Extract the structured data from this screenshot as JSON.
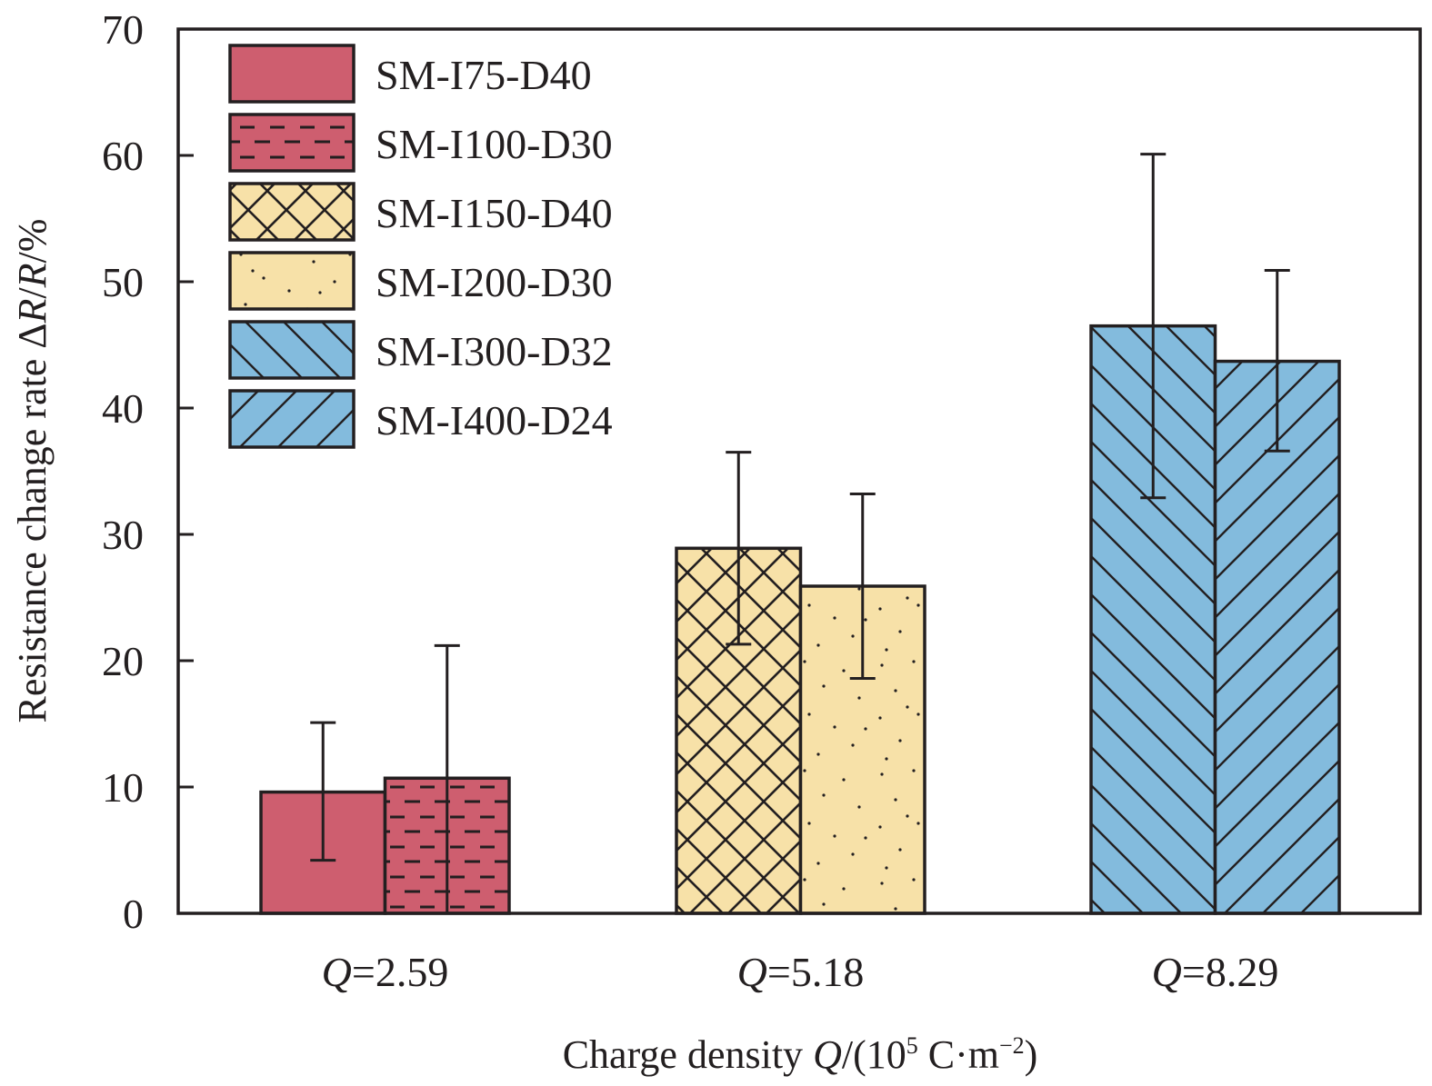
{
  "chart_data": {
    "type": "bar",
    "title": "",
    "xlabel": {
      "prefix": "Charge density ",
      "var": "Q",
      "mid": "/(10",
      "sup1": "5",
      "unit": " C·m",
      "sup2": "−2",
      "end": ")"
    },
    "ylabel": {
      "prefix": "Resistance change rate Δ",
      "var1": "R",
      "sep": "/",
      "var2": "R",
      "suffix": "/%"
    },
    "ylim": [
      0,
      70
    ],
    "yticks": [
      0,
      10,
      20,
      30,
      40,
      50,
      60,
      70
    ],
    "grid": false,
    "legend_position": "top-left",
    "categories": [
      {
        "var": "Q",
        "text": "=2.59"
      },
      {
        "var": "Q",
        "text": "=5.18"
      },
      {
        "var": "Q",
        "text": "=8.29"
      }
    ],
    "series": [
      {
        "name": "SM-I75-D40",
        "category": 0,
        "value": 9.6,
        "err_low": 4.2,
        "err_high": 15.1,
        "color": "#CE5E6F",
        "pattern": "solid"
      },
      {
        "name": "SM-I100-D30",
        "category": 0,
        "value": 10.7,
        "err_low": 0.0,
        "err_high": 21.2,
        "color": "#CE5E6F",
        "pattern": "dashes"
      },
      {
        "name": "SM-I150-D40",
        "category": 1,
        "value": 28.9,
        "err_low": 21.3,
        "err_high": 36.5,
        "color": "#F7E1A8",
        "pattern": "crosshatch"
      },
      {
        "name": "SM-I200-D30",
        "category": 1,
        "value": 25.9,
        "err_low": 18.6,
        "err_high": 33.2,
        "color": "#F7E1A8",
        "pattern": "dots"
      },
      {
        "name": "SM-I300-D32",
        "category": 2,
        "value": 46.5,
        "err_low": 32.9,
        "err_high": 60.1,
        "color": "#83BBDD",
        "pattern": "backslash"
      },
      {
        "name": "SM-I400-D24",
        "category": 2,
        "value": 43.7,
        "err_low": 36.6,
        "err_high": 50.9,
        "color": "#83BBDD",
        "pattern": "slash"
      }
    ]
  }
}
